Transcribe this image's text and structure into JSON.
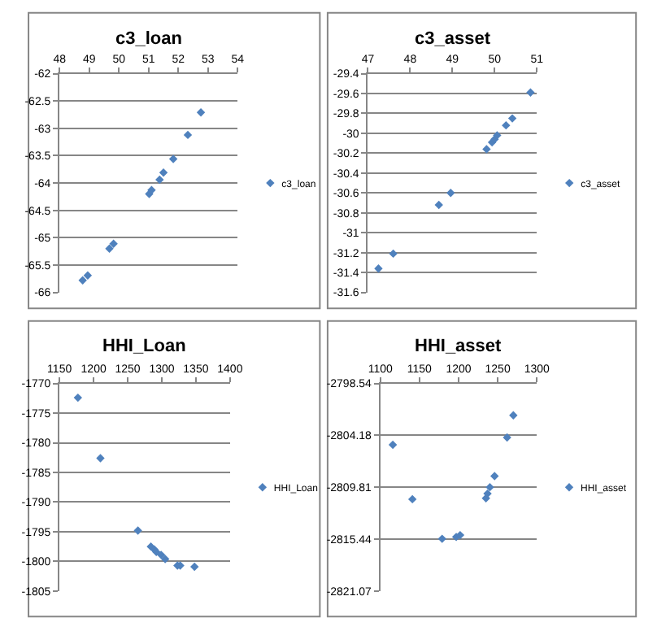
{
  "chart_data": [
    {
      "type": "scatter",
      "title": "c3_loan",
      "x": [
        48.78,
        48.95,
        49.68,
        49.82,
        51.02,
        51.1,
        51.37,
        51.5,
        51.83,
        52.32,
        52.76
      ],
      "series": [
        {
          "name": "c3_loan",
          "color": "#4f81bd",
          "values": [
            -65.78,
            -65.69,
            -65.2,
            -65.11,
            -64.2,
            -64.13,
            -63.94,
            -63.81,
            -63.56,
            -63.12,
            -62.71
          ]
        }
      ],
      "xlim": [
        48,
        54
      ],
      "xticks": [
        48,
        49,
        50,
        51,
        52,
        53,
        54
      ],
      "ylim": [
        -66,
        -62
      ],
      "yticks": [
        -66,
        -65.5,
        -65,
        -64.5,
        -64,
        -63.5,
        -63,
        -62.5,
        -62
      ],
      "grid": "y",
      "legend": "right",
      "marker": "diamond"
    },
    {
      "type": "scatter",
      "title": "c3_asset",
      "x": [
        47.25,
        47.6,
        48.68,
        48.96,
        49.81,
        49.94,
        50.0,
        50.06,
        50.27,
        50.42,
        50.85
      ],
      "series": [
        {
          "name": "c3_asset",
          "color": "#4f81bd",
          "values": [
            -31.36,
            -31.21,
            -30.72,
            -30.6,
            -30.16,
            -30.09,
            -30.06,
            -30.02,
            -29.92,
            -29.85,
            -29.59
          ]
        }
      ],
      "xlim": [
        47,
        51
      ],
      "xticks": [
        47,
        48,
        49,
        50,
        51
      ],
      "ylim": [
        -31.6,
        -29.4
      ],
      "yticks": [
        -31.6,
        -31.4,
        -31.2,
        -31,
        -30.8,
        -30.6,
        -30.4,
        -30.2,
        -30,
        -29.8,
        -29.6,
        -29.4
      ],
      "grid": "y",
      "legend": "right",
      "marker": "diamond"
    },
    {
      "type": "scatter",
      "title": "HHI_Loan",
      "x": [
        1177,
        1210,
        1265,
        1284,
        1289,
        1292,
        1299,
        1305,
        1323,
        1327,
        1348
      ],
      "series": [
        {
          "name": "HHI_Loan",
          "color": "#4f81bd",
          "values": [
            -1772.4,
            -1782.6,
            -1794.8,
            -1797.5,
            -1798,
            -1798.4,
            -1798.9,
            -1799.6,
            -1800.7,
            -1800.7,
            -1800.9
          ]
        }
      ],
      "xlim": [
        1150,
        1400
      ],
      "xticks": [
        1150,
        1200,
        1250,
        1300,
        1350,
        1400
      ],
      "ylim": [
        -1805,
        -1770
      ],
      "yticks": [
        -1805,
        -1800,
        -1795,
        -1790,
        -1785,
        -1780,
        -1775,
        -1770
      ],
      "grid": "y",
      "legend": "right",
      "marker": "diamond"
    },
    {
      "type": "scatter",
      "title": "HHI_asset",
      "x": [
        1116,
        1141,
        1179,
        1197,
        1202,
        1235,
        1237,
        1240,
        1246,
        1262,
        1270
      ],
      "series": [
        {
          "name": "HHI_asset",
          "color": "#4f81bd",
          "values": [
            -2805.2,
            -2811.1,
            -2815.4,
            -2815.2,
            -2815.0,
            -2811.0,
            -2810.5,
            -2809.8,
            -2808.6,
            -2804.4,
            -2802.0
          ]
        }
      ],
      "xlim": [
        1100,
        1300
      ],
      "xticks": [
        1100,
        1150,
        1200,
        1250,
        1300
      ],
      "ylim": [
        -2821.07,
        -2798.54
      ],
      "yticks": [
        -2821.07,
        -2815.44,
        -2809.81,
        -2804.18,
        -2798.54
      ],
      "grid": "y",
      "legend": "right",
      "marker": "diamond"
    }
  ]
}
